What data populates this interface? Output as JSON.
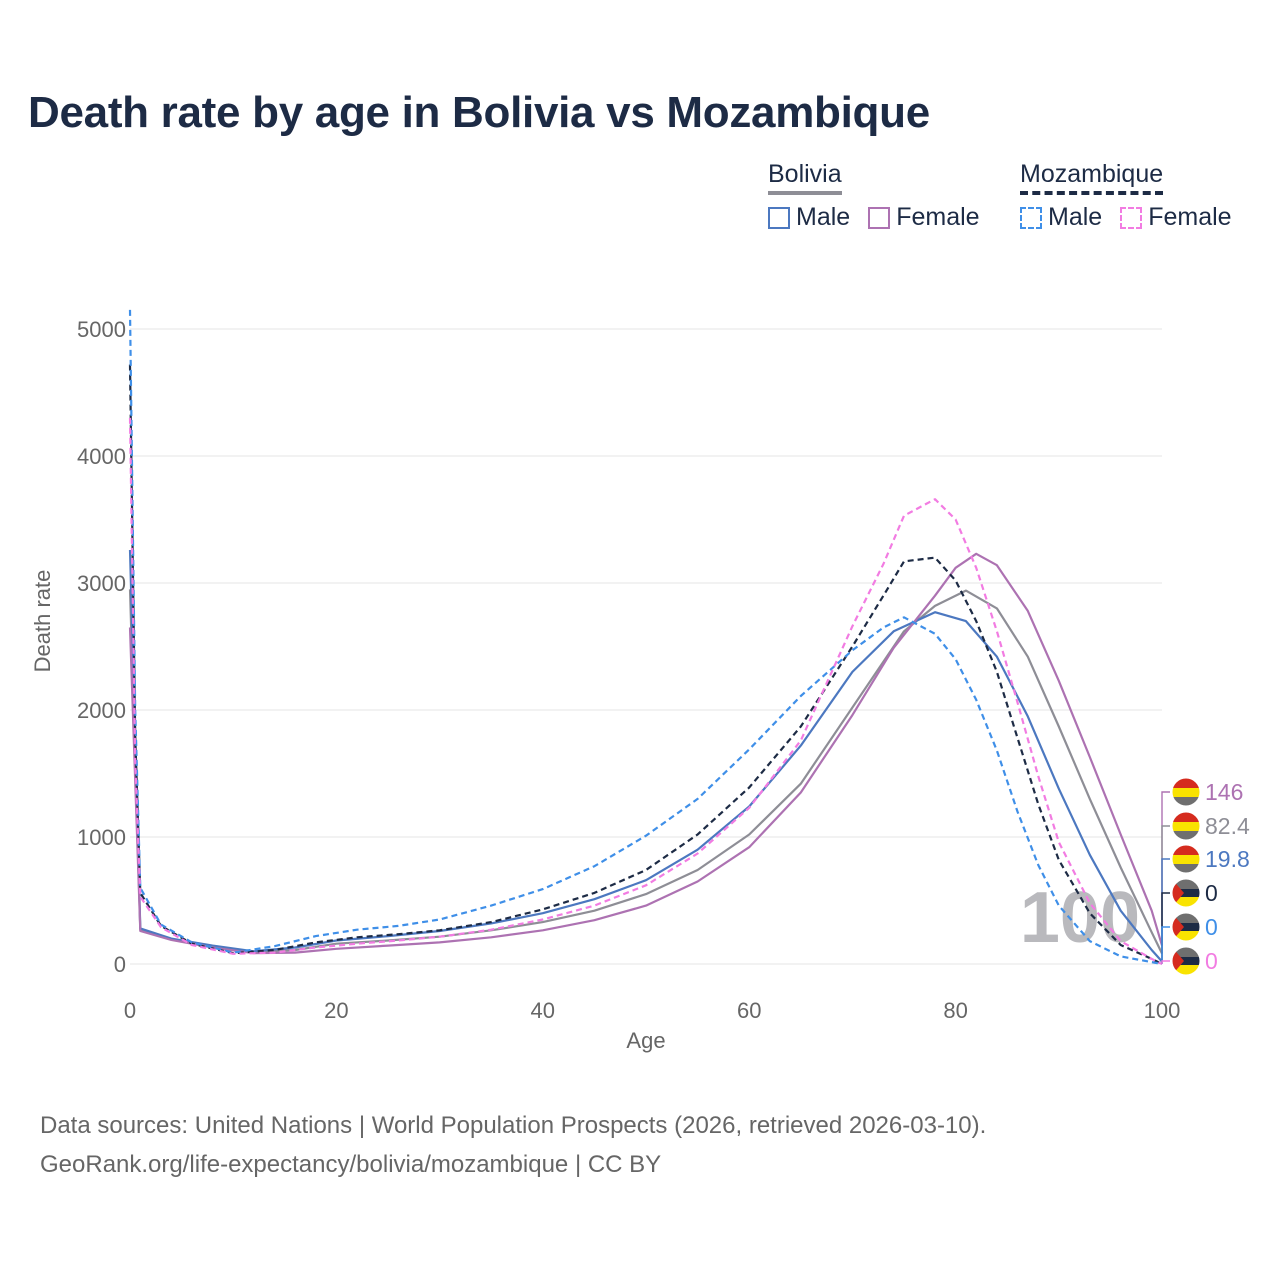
{
  "title": "Death rate by age in Bolivia vs Mozambique",
  "legend": {
    "bolivia": {
      "title": "Bolivia",
      "male": "Male",
      "female": "Female"
    },
    "mozambique": {
      "title": "Mozambique",
      "male": "Male",
      "female": "Female"
    }
  },
  "colors": {
    "bolivia_male": "#4c78c0",
    "bolivia_female": "#ad72b2",
    "bolivia_total": "#8e8e96",
    "mozambique_male": "#3f8fe8",
    "mozambique_female": "#f27ce2",
    "mozambique_total": "#1d2b45",
    "flag_bolivia": [
      "#d52b1e",
      "#f9e300",
      "#6f6f6f"
    ],
    "flag_mozambique": [
      "#1d2b45",
      "#6f6f6f",
      "#f9e300",
      "#d52b1e"
    ]
  },
  "chart_data": {
    "type": "line",
    "title": "Death rate by age in Bolivia vs Mozambique",
    "xlabel": "Age",
    "ylabel": "Death rate",
    "xlim": [
      0,
      100
    ],
    "ylim": [
      0,
      5000
    ],
    "xticks": [
      0,
      20,
      40,
      60,
      80,
      100
    ],
    "yticks": [
      0,
      1000,
      2000,
      3000,
      4000,
      5000
    ],
    "current_age_label": "100",
    "series": [
      {
        "name": "Bolivia Total",
        "country": "Bolivia",
        "sex": "Total",
        "dashed": false,
        "color": "#8e8e96",
        "end_value": "82.4",
        "points": [
          [
            0,
            2950
          ],
          [
            1,
            270
          ],
          [
            4,
            195
          ],
          [
            8,
            140
          ],
          [
            12,
            95
          ],
          [
            16,
            110
          ],
          [
            20,
            160
          ],
          [
            25,
            185
          ],
          [
            30,
            215
          ],
          [
            35,
            265
          ],
          [
            40,
            330
          ],
          [
            45,
            420
          ],
          [
            50,
            550
          ],
          [
            55,
            740
          ],
          [
            60,
            1020
          ],
          [
            65,
            1420
          ],
          [
            70,
            2020
          ],
          [
            75,
            2620
          ],
          [
            78,
            2820
          ],
          [
            81,
            2940
          ],
          [
            84,
            2800
          ],
          [
            87,
            2420
          ],
          [
            90,
            1870
          ],
          [
            93,
            1300
          ],
          [
            96,
            760
          ],
          [
            99,
            250
          ],
          [
            100,
            82.4
          ]
        ]
      },
      {
        "name": "Bolivia Male",
        "country": "Bolivia",
        "sex": "Male",
        "dashed": false,
        "color": "#4c78c0",
        "end_value": "19.8",
        "points": [
          [
            0,
            3260
          ],
          [
            1,
            280
          ],
          [
            4,
            200
          ],
          [
            8,
            145
          ],
          [
            12,
            100
          ],
          [
            16,
            130
          ],
          [
            20,
            185
          ],
          [
            25,
            220
          ],
          [
            30,
            260
          ],
          [
            35,
            320
          ],
          [
            40,
            400
          ],
          [
            45,
            510
          ],
          [
            50,
            660
          ],
          [
            55,
            900
          ],
          [
            60,
            1240
          ],
          [
            65,
            1720
          ],
          [
            70,
            2300
          ],
          [
            74,
            2620
          ],
          [
            78,
            2770
          ],
          [
            81,
            2700
          ],
          [
            84,
            2420
          ],
          [
            87,
            1950
          ],
          [
            90,
            1380
          ],
          [
            93,
            860
          ],
          [
            96,
            420
          ],
          [
            99,
            110
          ],
          [
            100,
            19.8
          ]
        ]
      },
      {
        "name": "Bolivia Female",
        "country": "Bolivia",
        "sex": "Female",
        "dashed": false,
        "color": "#ad72b2",
        "end_value": "146",
        "points": [
          [
            0,
            2650
          ],
          [
            1,
            260
          ],
          [
            4,
            190
          ],
          [
            8,
            130
          ],
          [
            12,
            85
          ],
          [
            16,
            90
          ],
          [
            20,
            120
          ],
          [
            25,
            145
          ],
          [
            30,
            170
          ],
          [
            35,
            210
          ],
          [
            40,
            265
          ],
          [
            45,
            345
          ],
          [
            50,
            460
          ],
          [
            55,
            650
          ],
          [
            60,
            920
          ],
          [
            65,
            1350
          ],
          [
            70,
            1960
          ],
          [
            74,
            2490
          ],
          [
            78,
            2900
          ],
          [
            80,
            3120
          ],
          [
            82,
            3230
          ],
          [
            84,
            3140
          ],
          [
            87,
            2780
          ],
          [
            90,
            2230
          ],
          [
            93,
            1630
          ],
          [
            96,
            1020
          ],
          [
            99,
            420
          ],
          [
            100,
            146
          ]
        ]
      },
      {
        "name": "Mozambique Total",
        "country": "Mozambique",
        "sex": "Total",
        "dashed": true,
        "color": "#1d2b45",
        "end_value": "0",
        "points": [
          [
            0,
            4720
          ],
          [
            0.5,
            1800
          ],
          [
            1,
            560
          ],
          [
            3,
            300
          ],
          [
            6,
            160
          ],
          [
            10,
            85
          ],
          [
            14,
            110
          ],
          [
            18,
            170
          ],
          [
            22,
            210
          ],
          [
            26,
            235
          ],
          [
            30,
            265
          ],
          [
            35,
            330
          ],
          [
            40,
            430
          ],
          [
            45,
            560
          ],
          [
            50,
            740
          ],
          [
            55,
            1020
          ],
          [
            60,
            1390
          ],
          [
            65,
            1870
          ],
          [
            70,
            2500
          ],
          [
            73,
            2900
          ],
          [
            75,
            3170
          ],
          [
            78,
            3200
          ],
          [
            80,
            3020
          ],
          [
            82,
            2700
          ],
          [
            84,
            2300
          ],
          [
            86,
            1780
          ],
          [
            88,
            1260
          ],
          [
            90,
            820
          ],
          [
            93,
            400
          ],
          [
            96,
            150
          ],
          [
            99,
            40
          ],
          [
            100,
            0
          ]
        ]
      },
      {
        "name": "Mozambique Male",
        "country": "Mozambique",
        "sex": "Male",
        "dashed": true,
        "color": "#3f8fe8",
        "end_value": "0",
        "points": [
          [
            0,
            5150
          ],
          [
            0.5,
            2000
          ],
          [
            1,
            600
          ],
          [
            3,
            310
          ],
          [
            6,
            170
          ],
          [
            10,
            90
          ],
          [
            14,
            140
          ],
          [
            18,
            220
          ],
          [
            22,
            270
          ],
          [
            26,
            300
          ],
          [
            30,
            350
          ],
          [
            35,
            460
          ],
          [
            40,
            590
          ],
          [
            45,
            770
          ],
          [
            50,
            1010
          ],
          [
            55,
            1300
          ],
          [
            60,
            1690
          ],
          [
            65,
            2110
          ],
          [
            70,
            2470
          ],
          [
            73,
            2650
          ],
          [
            75,
            2730
          ],
          [
            78,
            2600
          ],
          [
            80,
            2400
          ],
          [
            82,
            2080
          ],
          [
            84,
            1680
          ],
          [
            86,
            1200
          ],
          [
            88,
            780
          ],
          [
            90,
            460
          ],
          [
            93,
            180
          ],
          [
            96,
            60
          ],
          [
            99,
            15
          ],
          [
            100,
            0
          ]
        ]
      },
      {
        "name": "Mozambique Female",
        "country": "Mozambique",
        "sex": "Female",
        "dashed": true,
        "color": "#f27ce2",
        "end_value": "0",
        "points": [
          [
            0,
            4300
          ],
          [
            0.5,
            1600
          ],
          [
            1,
            530
          ],
          [
            3,
            290
          ],
          [
            6,
            150
          ],
          [
            10,
            80
          ],
          [
            14,
            90
          ],
          [
            18,
            130
          ],
          [
            22,
            160
          ],
          [
            26,
            185
          ],
          [
            30,
            215
          ],
          [
            35,
            270
          ],
          [
            40,
            350
          ],
          [
            45,
            460
          ],
          [
            50,
            620
          ],
          [
            55,
            870
          ],
          [
            60,
            1230
          ],
          [
            65,
            1760
          ],
          [
            70,
            2660
          ],
          [
            73,
            3150
          ],
          [
            75,
            3530
          ],
          [
            78,
            3660
          ],
          [
            80,
            3500
          ],
          [
            82,
            3120
          ],
          [
            84,
            2620
          ],
          [
            86,
            2060
          ],
          [
            88,
            1480
          ],
          [
            90,
            960
          ],
          [
            93,
            480
          ],
          [
            96,
            180
          ],
          [
            99,
            40
          ],
          [
            100,
            0
          ]
        ]
      }
    ]
  },
  "source": {
    "line1": "Data sources: United Nations | World Population Prospects (2026, retrieved 2026-03-10).",
    "line2": "GeoRank.org/life-expectancy/bolivia/mozambique | CC BY"
  }
}
